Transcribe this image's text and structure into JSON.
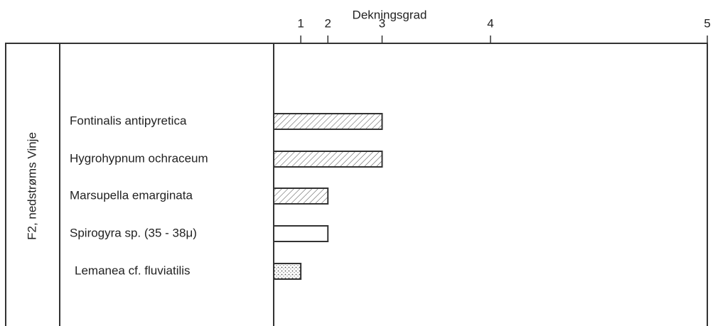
{
  "chart_data": {
    "type": "bar",
    "orientation": "horizontal",
    "x_label": "Dekningsgrad",
    "y_label": "F2, nedstrøms Vinje",
    "categories": [
      "Fontinalis antipyretica",
      "Hygrohypnum ochraceum",
      "Marsupella emarginata",
      "Spirogyra sp. (35 - 38μ)",
      "Lemanea cf. fluviatilis"
    ],
    "values": [
      3,
      3,
      2,
      2,
      1
    ],
    "bar_styles": [
      "hatch",
      "hatch",
      "hatch",
      "none",
      "dots"
    ],
    "color": "#333333",
    "xscale": "exp2",
    "xlim": [
      0,
      5
    ],
    "xticks": [
      1,
      2,
      3,
      4,
      5
    ]
  }
}
